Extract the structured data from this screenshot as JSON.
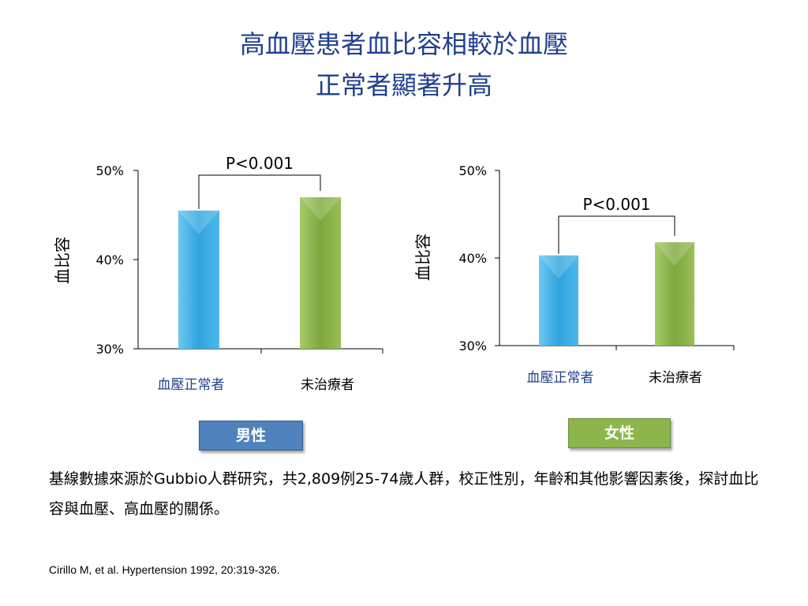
{
  "title": {
    "line1": "高血壓患者血比容相較於血壓",
    "line2": "正常者顯著升高"
  },
  "chart_data": [
    {
      "type": "bar",
      "title": "",
      "ylabel": "血比容",
      "xlabel": "",
      "ylim": [
        30,
        50
      ],
      "yticks": [
        "30%",
        "40%",
        "50%"
      ],
      "categories": [
        "血壓正常者",
        "未治療者"
      ],
      "values": [
        45.5,
        47.0
      ],
      "annotation": "P<0.001",
      "group_label": "男性"
    },
    {
      "type": "bar",
      "title": "",
      "ylabel": "血比容",
      "xlabel": "",
      "ylim": [
        30,
        50
      ],
      "yticks": [
        "30%",
        "40%",
        "50%"
      ],
      "categories": [
        "血壓正常者",
        "未治療者"
      ],
      "values": [
        40.3,
        41.8
      ],
      "annotation": "P<0.001",
      "group_label": "女性"
    }
  ],
  "colors": {
    "title": "#1f3f8f",
    "bar_normal": "#3fb0e6",
    "bar_untreated": "#8cb64b",
    "male_badge": "#4f81bd",
    "female_badge": "#8cb64b"
  },
  "note": "基線數據來源於Gubbio人群研究，共2,809例25-74歲人群，校正性別，年齡和其他影響因素後，探討血比容與血壓、高血壓的關係。",
  "citation": "Cirillo M, et al. Hypertension 1992, 20:319-326."
}
